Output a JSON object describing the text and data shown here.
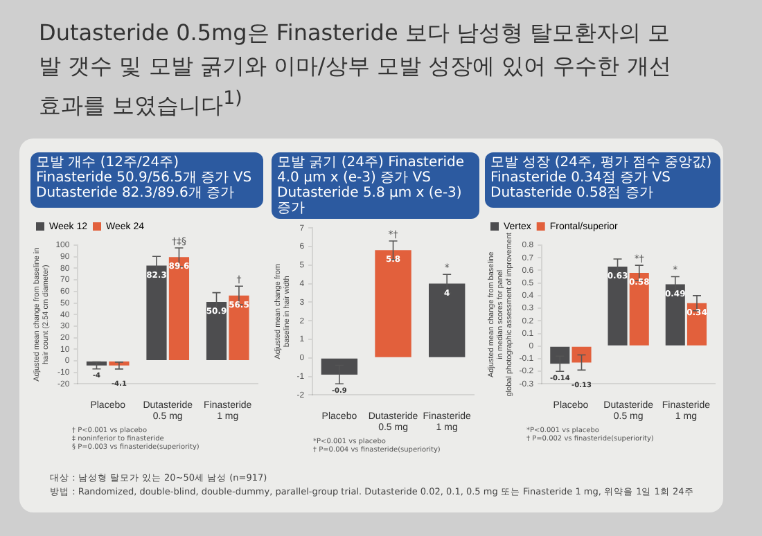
{
  "chart_data": [
    {
      "type": "other",
      "title": "Dutasteride 0.5mg은 Finasteride 보다 남성형 탈모환자의 모발 갯수 및 모발 굵기와 이마/상부 모발 성장에 있어 우수한 개선효과를 보였습니다$^{1)}$",
      "annotations": [
        "대상 : 남성형 탈모가 있는 20~50세 남성 (n=917)",
        "방법 : Randomized, double-blind, double-dummy, parallel-group trial. Dutasteride 0.02, 0.1, 0.5 mg 또는 Finasteride 1 mg, 위약을 1일 1회 24주"
      ]
    },
    {
      "type": "bar",
      "subtitle": "모발 개수 (12주/24주)  Finasteride 50.9/56.5개 증가 VS Dutasteride 82.3/89.6개 증가",
      "ylabel": "Adjusted mean change from baseline in hair count (2.54 cm diameter)",
      "categories": [
        "Placebo",
        "Dutasteride 0.5 mg",
        "Finasteride 1 mg"
      ],
      "series": [
        {
          "name": "Week 12",
          "color": "#4d4d4f",
          "values": [
            -4.0,
            82.3,
            50.9
          ],
          "errors": [
            3,
            8,
            8
          ]
        },
        {
          "name": "Week 24",
          "color": "#e2603c",
          "values": [
            -4.1,
            89.6,
            56.5
          ],
          "errors": [
            3,
            8,
            8
          ]
        }
      ],
      "ylim": [
        -20,
        100
      ],
      "yticks": [
        -20,
        -10,
        0,
        10,
        20,
        30,
        40,
        50,
        60,
        70,
        80,
        90,
        100
      ],
      "legend": "top left",
      "data_labels": true,
      "annotations": [
        {
          "text": "†‡§",
          "x": "Dutasteride 0.5 mg",
          "y": 89.6
        },
        {
          "text": "†",
          "x": "Finasteride 1 mg",
          "y": 56.5
        },
        "† P<0.001 vs placebo",
        "‡ noninferior to finasteride",
        "§ P=0.003 vs finasteride(superiority)"
      ]
    },
    {
      "type": "bar",
      "subtitle": "모발 굵기 (24주)  Finasteride 4.0 μm x (e-3) 증가 VS Dutasteride 5.8 μm x (e-3) 증가",
      "ylabel": "Adjusted mean change from baseline in hair width",
      "categories": [
        "Placebo",
        "Dutasteride 0.5 mg",
        "Finasteride 1 mg"
      ],
      "values": [
        -0.9,
        5.8,
        4.0
      ],
      "colors": [
        "#4d4d4f",
        "#e2603c",
        "#4d4d4f"
      ],
      "errors": [
        0.5,
        0.5,
        0.5
      ],
      "ylim": [
        -2,
        7
      ],
      "yticks": [
        -2,
        -1,
        0,
        1,
        2,
        3,
        4,
        5,
        6,
        7
      ],
      "data_labels": true,
      "annotations": [
        {
          "text": "*†",
          "x": "Dutasteride 0.5 mg",
          "y": 5.8
        },
        {
          "text": "*",
          "x": "Finasteride 1 mg",
          "y": 4.0
        },
        "*P<0.001 vs placebo",
        "† P=0.004 vs finasteride(superiority)"
      ]
    },
    {
      "type": "bar",
      "subtitle": "모발 성장 (24주, 평가 점수 중앙값)  Finasteride 0.34점 증가 VS Dutasteride 0.58점 증가",
      "ylabel": "Adjusted mean change from baseline in median scores for panel global photographic assessment of improvement",
      "categories": [
        "Placebo",
        "Dutasteride 0.5 mg",
        "Finasteride 1 mg"
      ],
      "series": [
        {
          "name": "Vertex",
          "color": "#4d4d4f",
          "values": [
            -0.14,
            0.63,
            0.49
          ],
          "errors": [
            0.06,
            0.06,
            0.06
          ]
        },
        {
          "name": "Frontal/superior",
          "color": "#e2603c",
          "values": [
            -0.13,
            0.58,
            0.34
          ],
          "errors": [
            0.06,
            0.06,
            0.06
          ]
        }
      ],
      "ylim": [
        -0.3,
        0.8
      ],
      "yticks": [
        -0.3,
        -0.2,
        -0.1,
        0,
        0.1,
        0.2,
        0.3,
        0.4,
        0.5,
        0.6,
        0.7,
        0.8
      ],
      "legend": "top left",
      "data_labels": true,
      "annotations": [
        {
          "text": "*†",
          "x": "Dutasteride 0.5 mg",
          "y": 0.58
        },
        {
          "text": "*",
          "x": "Finasteride 1 mg",
          "y": 0.49
        },
        "*P<0.001 vs placebo",
        "† P=0.002 vs finasteride(superiority)"
      ]
    }
  ]
}
